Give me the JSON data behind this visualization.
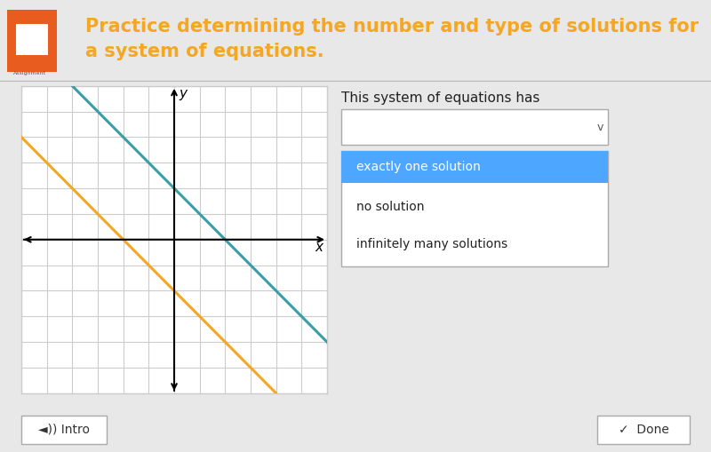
{
  "bg_color": "#e8e8e8",
  "header_bg": "#f8f8f8",
  "header_text": "Practice determining the number and type of solutions for\na system of equations.",
  "header_color": "#f5a623",
  "header_fontsize": 15,
  "graph_bg": "#ffffff",
  "graph_border": "#cccccc",
  "grid_color": "#cccccc",
  "axis_color": "#000000",
  "teal_line_color": "#3a9ea5",
  "orange_line_color": "#f5a623",
  "teal_slope": -1.0,
  "teal_intercept": 2,
  "orange_slope": -1.0,
  "orange_intercept": -2,
  "xmin": -6,
  "xmax": 6,
  "ymin": -6,
  "ymax": 6,
  "xlabel": "x",
  "ylabel": "y",
  "dropdown_label": "This system of equations has",
  "dropdown_options": [
    "exactly one solution",
    "no solution",
    "infinitely many solutions"
  ],
  "dropdown_highlight": "#4da6ff",
  "footer_bg": "#c8c8c8",
  "icon_color": "#e85c20"
}
